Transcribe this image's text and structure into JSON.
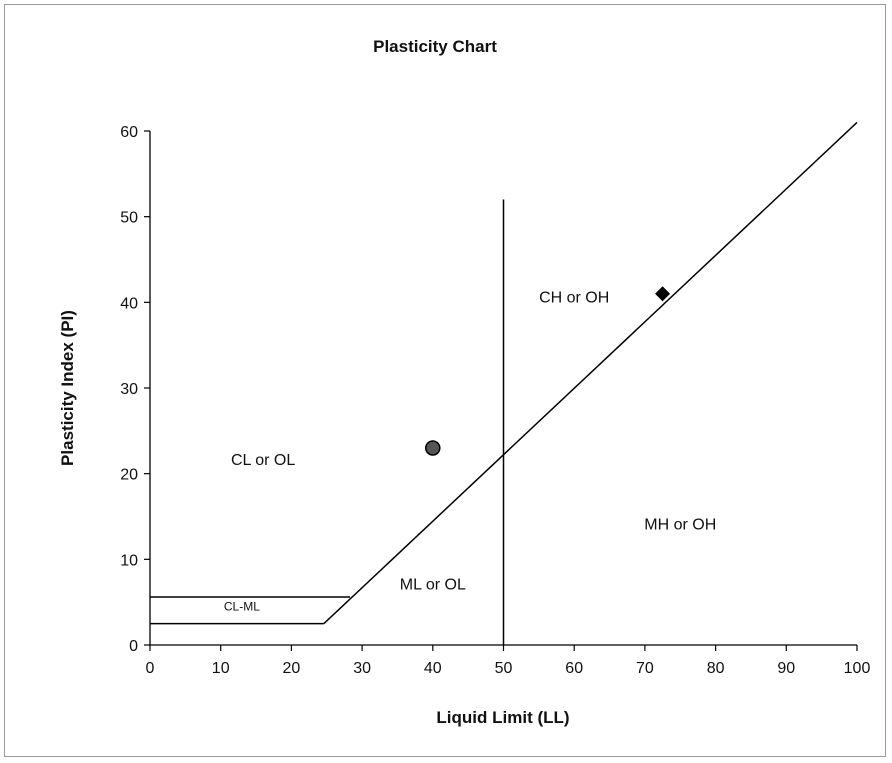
{
  "chart_data": {
    "type": "scatter",
    "title": "Plasticity Chart",
    "xlabel": "Liquid Limit (LL)",
    "ylabel": "Plasticity Index (PI)",
    "xlim": [
      0,
      100
    ],
    "ylim": [
      0,
      60
    ],
    "xticks": [
      0,
      10,
      20,
      30,
      40,
      50,
      60,
      70,
      80,
      90,
      100
    ],
    "yticks": [
      0,
      10,
      20,
      30,
      40,
      50,
      60
    ],
    "grid": false,
    "legend": "none",
    "lines": [
      {
        "kind": "a-line",
        "points": [
          [
            24.6,
            2.5
          ],
          [
            100,
            61
          ]
        ]
      },
      {
        "kind": "ll-50-divider",
        "points": [
          [
            50,
            0
          ],
          [
            50,
            52
          ]
        ]
      },
      {
        "kind": "cl-ml-lower",
        "points": [
          [
            0,
            2.5
          ],
          [
            24.6,
            2.5
          ]
        ]
      },
      {
        "kind": "cl-ml-upper",
        "points": [
          [
            0,
            5.6
          ],
          [
            28.3,
            5.6
          ]
        ]
      }
    ],
    "points": [
      {
        "x": 40,
        "y": 23,
        "marker": "circle"
      },
      {
        "x": 72.5,
        "y": 41,
        "marker": "diamond"
      }
    ],
    "regions": [
      {
        "label": "CL or OL",
        "x": 16,
        "y": 21
      },
      {
        "label": "CH or OH",
        "x": 60,
        "y": 40
      },
      {
        "label": "ML or OL",
        "x": 40,
        "y": 6.5
      },
      {
        "label": "MH or OH",
        "x": 75,
        "y": 13.5
      },
      {
        "label": "CL-ML",
        "x": 13,
        "y": 4.0,
        "small": true
      }
    ],
    "colors": {
      "line": "#000000",
      "marker": "#000000",
      "axis": "#000000",
      "frame": "#9a9a9a"
    }
  }
}
